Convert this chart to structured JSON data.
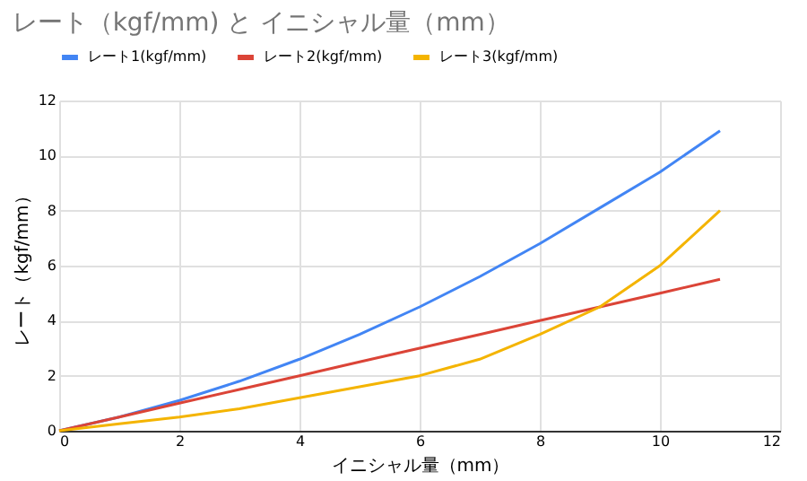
{
  "chart_data": {
    "type": "line",
    "title": "レート（kgf/mm) と イニシャル量（mm）",
    "xlabel": "イニシャル量（mm）",
    "ylabel": "レート（kgf/mm）",
    "x": [
      0,
      1,
      2,
      3,
      4,
      5,
      6,
      7,
      8,
      9,
      10,
      11
    ],
    "series": [
      {
        "name": "レート1(kgf/mm)",
        "color": "#4285f4",
        "values": [
          0,
          0.5,
          1.1,
          1.8,
          2.6,
          3.5,
          4.5,
          5.6,
          6.8,
          8.1,
          9.4,
          10.9
        ]
      },
      {
        "name": "レート2(kgf/mm)",
        "color": "#db4437",
        "values": [
          0,
          0.5,
          1,
          1.5,
          2,
          2.5,
          3,
          3.5,
          4,
          4.5,
          5,
          5.5
        ]
      },
      {
        "name": "レート3(kgf/mm)",
        "color": "#f4b400",
        "values": [
          0,
          0.25,
          0.5,
          0.8,
          1.2,
          1.6,
          2,
          2.6,
          3.5,
          4.5,
          6,
          8
        ]
      }
    ],
    "xlim": [
      0,
      12
    ],
    "xticks": [
      0,
      2,
      4,
      6,
      8,
      10,
      12
    ],
    "ylim": [
      0,
      12
    ],
    "yticks": [
      0,
      2,
      4,
      6,
      8,
      10,
      12
    ],
    "grid": true,
    "legend": "top",
    "marker": "none",
    "line_style": "solid"
  }
}
